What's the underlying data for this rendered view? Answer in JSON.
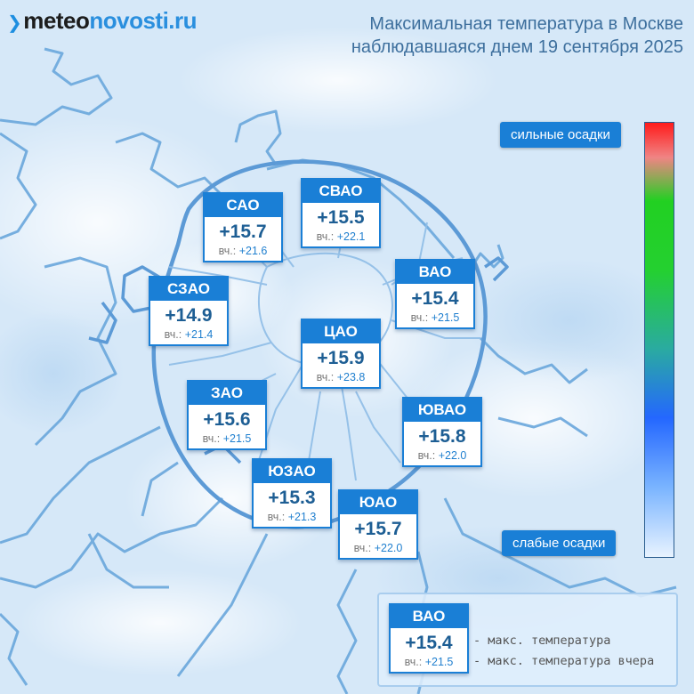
{
  "logo": {
    "part1": "meteo",
    "part2": "novosti.ru"
  },
  "title": {
    "line1": "Максимальная температура в Москве",
    "line2": "наблюдавшаяся днем 19 сентября 2025"
  },
  "colors": {
    "accent": "#1a7fd6",
    "background": "#d8e9f8",
    "border_line": "#4a90d2"
  },
  "yesterday_label": "вч.:",
  "districts": [
    {
      "name": "САО",
      "temp": "+15.7",
      "yesterday": "+21.6"
    },
    {
      "name": "СВАО",
      "temp": "+15.5",
      "yesterday": "+22.1"
    },
    {
      "name": "ВАО",
      "temp": "+15.4",
      "yesterday": "+21.5"
    },
    {
      "name": "СЗАО",
      "temp": "+14.9",
      "yesterday": "+21.4"
    },
    {
      "name": "ЦАО",
      "temp": "+15.9",
      "yesterday": "+23.8"
    },
    {
      "name": "ЗАО",
      "temp": "+15.6",
      "yesterday": "+21.5"
    },
    {
      "name": "ЮВАО",
      "temp": "+15.8",
      "yesterday": "+22.0"
    },
    {
      "name": "ЮЗАО",
      "temp": "+15.3",
      "yesterday": "+21.3"
    },
    {
      "name": "ЮАО",
      "temp": "+15.7",
      "yesterday": "+22.0"
    }
  ],
  "scale": {
    "top_label": "сильные осадки",
    "bottom_label": "слабые осадки"
  },
  "legend": {
    "sample": {
      "name": "ВАО",
      "temp": "+15.4",
      "yesterday": "+21.5"
    },
    "line1": "- макс. температура",
    "line2": "- макс. температура вчера"
  }
}
